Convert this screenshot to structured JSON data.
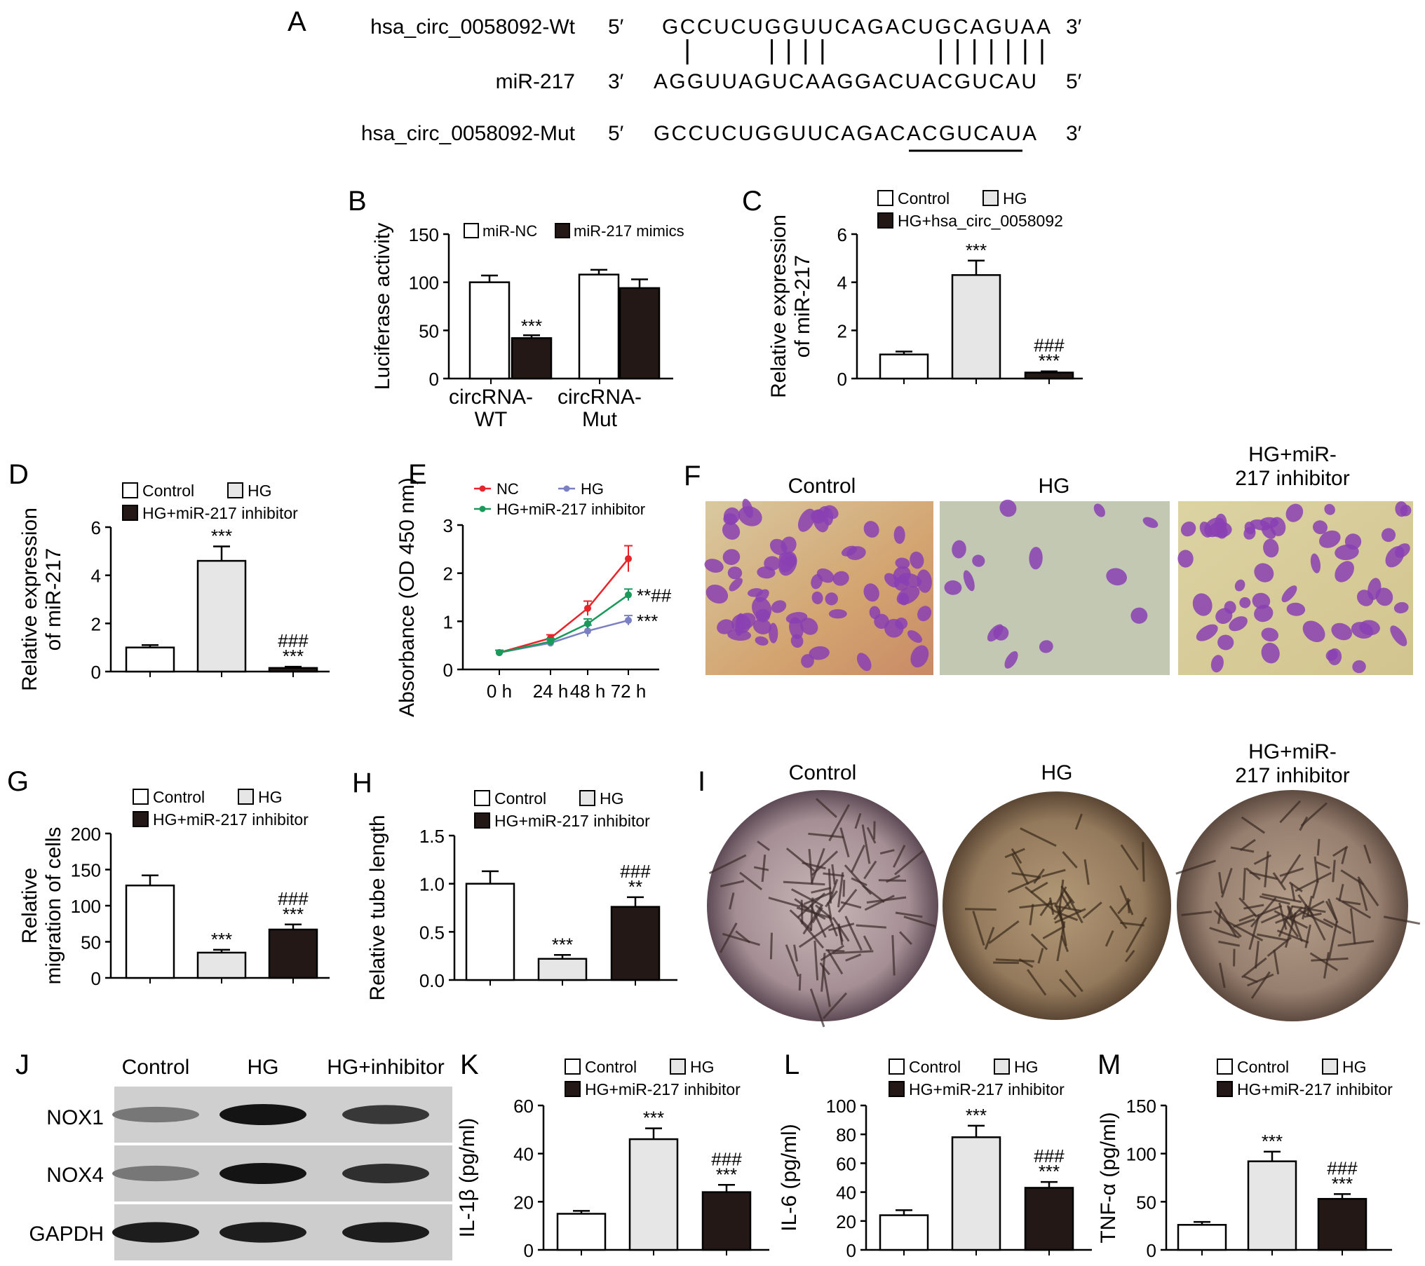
{
  "panel_a": {
    "letter": "A",
    "rows": [
      {
        "name": "hsa_circ_0058092-Wt",
        "end5": "5′",
        "seq": "GCCUCUGGUUCAGACUGCAGUAA",
        "end3": "3′"
      },
      {
        "name": "miR-217",
        "end5": "3′",
        "seq": "AGGUUAGUCAAGGACUACGUCAU",
        "end3": "5′"
      },
      {
        "name": "hsa_circ_0058092-Mut",
        "end5": "5′",
        "seq": "GCCUCUGGUUCAGACACGUCAUA",
        "end3": "3′"
      }
    ],
    "pairing_positions": [
      1,
      6,
      7,
      8,
      9,
      16,
      17,
      18,
      19,
      20,
      21,
      22
    ],
    "mutated_region": [
      15,
      21
    ]
  },
  "image_panels": {
    "F": {
      "letter": "F",
      "titles": [
        "Control",
        "HG",
        "HG+miR-\n217 inhibitor"
      ]
    },
    "I": {
      "letter": "I",
      "titles": [
        "Control",
        "HG",
        "HG+miR-\n217 inhibitor"
      ]
    }
  },
  "western_blot": {
    "letter": "J",
    "lanes": [
      "Control",
      "HG",
      "HG+inhibitor"
    ],
    "rows": [
      {
        "label": "NOX1",
        "intensity": [
          0.45,
          1.0,
          0.8
        ]
      },
      {
        "label": "NOX4",
        "intensity": [
          0.45,
          1.0,
          0.85
        ]
      },
      {
        "label": "GAPDH",
        "intensity": [
          0.95,
          0.95,
          0.95
        ]
      }
    ]
  },
  "chart_data": [
    {
      "id": "B",
      "letter": "B",
      "type": "bar",
      "ylabel": "Luciferase activity",
      "ylim": [
        0,
        150
      ],
      "yticks": [
        0,
        50,
        100,
        150
      ],
      "categories": [
        "circRNA-\nWT",
        "circRNA-\nMut"
      ],
      "series": [
        {
          "name": "miR-NC",
          "color": "#ffffff",
          "values": [
            100,
            108
          ],
          "errors": [
            7,
            5
          ]
        },
        {
          "name": "miR-217 mimics",
          "color": "#231815",
          "values": [
            42,
            94
          ],
          "errors": [
            3,
            9
          ]
        }
      ],
      "annotations": [
        {
          "series": 1,
          "index": 0,
          "text": "***"
        }
      ],
      "legend": "top"
    },
    {
      "id": "C",
      "letter": "C",
      "type": "bar",
      "ylabel": "Relative expression\nof miR-217",
      "ylim": [
        0,
        6
      ],
      "yticks": [
        0,
        2,
        4,
        6
      ],
      "categories": [
        "Control",
        "HG",
        "HG+hsa_circ_0058092"
      ],
      "values": [
        1.0,
        4.3,
        0.25
      ],
      "errors": [
        0.12,
        0.6,
        0.05
      ],
      "colors": [
        "#ffffff",
        "#e6e6e6",
        "#231815"
      ],
      "annotations": [
        "",
        "***",
        "###\n***"
      ],
      "legend": "top"
    },
    {
      "id": "D",
      "letter": "D",
      "type": "bar",
      "ylabel": "Relative expression\nof miR-217",
      "ylim": [
        0,
        6
      ],
      "yticks": [
        0,
        2,
        4,
        6
      ],
      "categories": [
        "Control",
        "HG",
        "HG+miR-217 inhibitor"
      ],
      "values": [
        1.0,
        4.6,
        0.15
      ],
      "errors": [
        0.1,
        0.6,
        0.05
      ],
      "colors": [
        "#ffffff",
        "#e6e6e6",
        "#231815"
      ],
      "annotations": [
        "",
        "***",
        "###\n***"
      ],
      "legend": "top"
    },
    {
      "id": "E",
      "letter": "E",
      "type": "line",
      "ylabel": "Absorbance (OD 450 nm)",
      "ylim": [
        0,
        3
      ],
      "yticks": [
        0,
        1,
        2,
        3
      ],
      "x": [
        "0 h",
        "24 h",
        "48 h",
        "72 h"
      ],
      "series": [
        {
          "name": "NC",
          "color": "#e8242a",
          "values": [
            0.35,
            0.65,
            1.27,
            2.3
          ],
          "errors": [
            0.05,
            0.07,
            0.15,
            0.27
          ]
        },
        {
          "name": "HG",
          "color": "#7b7fc4",
          "values": [
            0.35,
            0.55,
            0.8,
            1.02
          ],
          "errors": [
            0.05,
            0.06,
            0.12,
            0.1
          ]
        },
        {
          "name": "HG+miR-217 inhibitor",
          "color": "#1a9a5a",
          "values": [
            0.35,
            0.58,
            0.95,
            1.55
          ],
          "errors": [
            0.05,
            0.06,
            0.1,
            0.12
          ]
        }
      ],
      "end_annotations": [
        "",
        "***",
        "**##"
      ],
      "legend": "top"
    },
    {
      "id": "G",
      "letter": "G",
      "type": "bar",
      "ylabel": "Relative\nmigration of cells",
      "ylim": [
        0,
        200
      ],
      "yticks": [
        0,
        50,
        100,
        150,
        200
      ],
      "categories": [
        "Control",
        "HG",
        "HG+miR-217 inhibitor"
      ],
      "values": [
        128,
        35,
        67
      ],
      "errors": [
        14,
        4,
        7
      ],
      "colors": [
        "#ffffff",
        "#e6e6e6",
        "#231815"
      ],
      "annotations": [
        "",
        "***",
        "###\n***"
      ],
      "legend": "top"
    },
    {
      "id": "H",
      "letter": "H",
      "type": "bar",
      "ylabel": "Relative tube length",
      "ylim": [
        0,
        1.5
      ],
      "yticks": [
        "0.0",
        "0.5",
        "1.0",
        "1.5"
      ],
      "categories": [
        "Control",
        "HG",
        "HG+miR-217 inhibitor"
      ],
      "values": [
        1.0,
        0.22,
        0.76
      ],
      "errors": [
        0.13,
        0.04,
        0.1
      ],
      "colors": [
        "#ffffff",
        "#e6e6e6",
        "#231815"
      ],
      "annotations": [
        "",
        "***",
        "###\n**"
      ],
      "legend": "top"
    },
    {
      "id": "K",
      "letter": "K",
      "type": "bar",
      "ylabel": "IL-1β (pg/ml)",
      "ylim": [
        0,
        60
      ],
      "yticks": [
        0,
        20,
        40,
        60
      ],
      "categories": [
        "Control",
        "HG",
        "HG+miR-217 inhibitor"
      ],
      "values": [
        15,
        46,
        24
      ],
      "errors": [
        1.2,
        4.5,
        3
      ],
      "colors": [
        "#ffffff",
        "#e6e6e6",
        "#231815"
      ],
      "annotations": [
        "",
        "***",
        "###\n***"
      ],
      "legend": "top"
    },
    {
      "id": "L",
      "letter": "L",
      "type": "bar",
      "ylabel": "IL-6 (pg/ml)",
      "ylim": [
        0,
        100
      ],
      "yticks": [
        0,
        20,
        40,
        60,
        80,
        100
      ],
      "categories": [
        "Control",
        "HG",
        "HG+miR-217 inhibitor"
      ],
      "values": [
        24,
        78,
        43
      ],
      "errors": [
        3.5,
        8,
        4
      ],
      "colors": [
        "#ffffff",
        "#e6e6e6",
        "#231815"
      ],
      "annotations": [
        "",
        "***",
        "###\n***"
      ],
      "legend": "top"
    },
    {
      "id": "M",
      "letter": "M",
      "type": "bar",
      "ylabel": "TNF-α (pg/ml)",
      "ylim": [
        0,
        150
      ],
      "yticks": [
        0,
        50,
        100,
        150
      ],
      "categories": [
        "Control",
        "HG",
        "HG+miR-217 inhibitor"
      ],
      "values": [
        26,
        92,
        53
      ],
      "errors": [
        3,
        10,
        5
      ],
      "colors": [
        "#ffffff",
        "#e6e6e6",
        "#231815"
      ],
      "annotations": [
        "",
        "***",
        "###\n***"
      ],
      "legend": "top"
    }
  ]
}
